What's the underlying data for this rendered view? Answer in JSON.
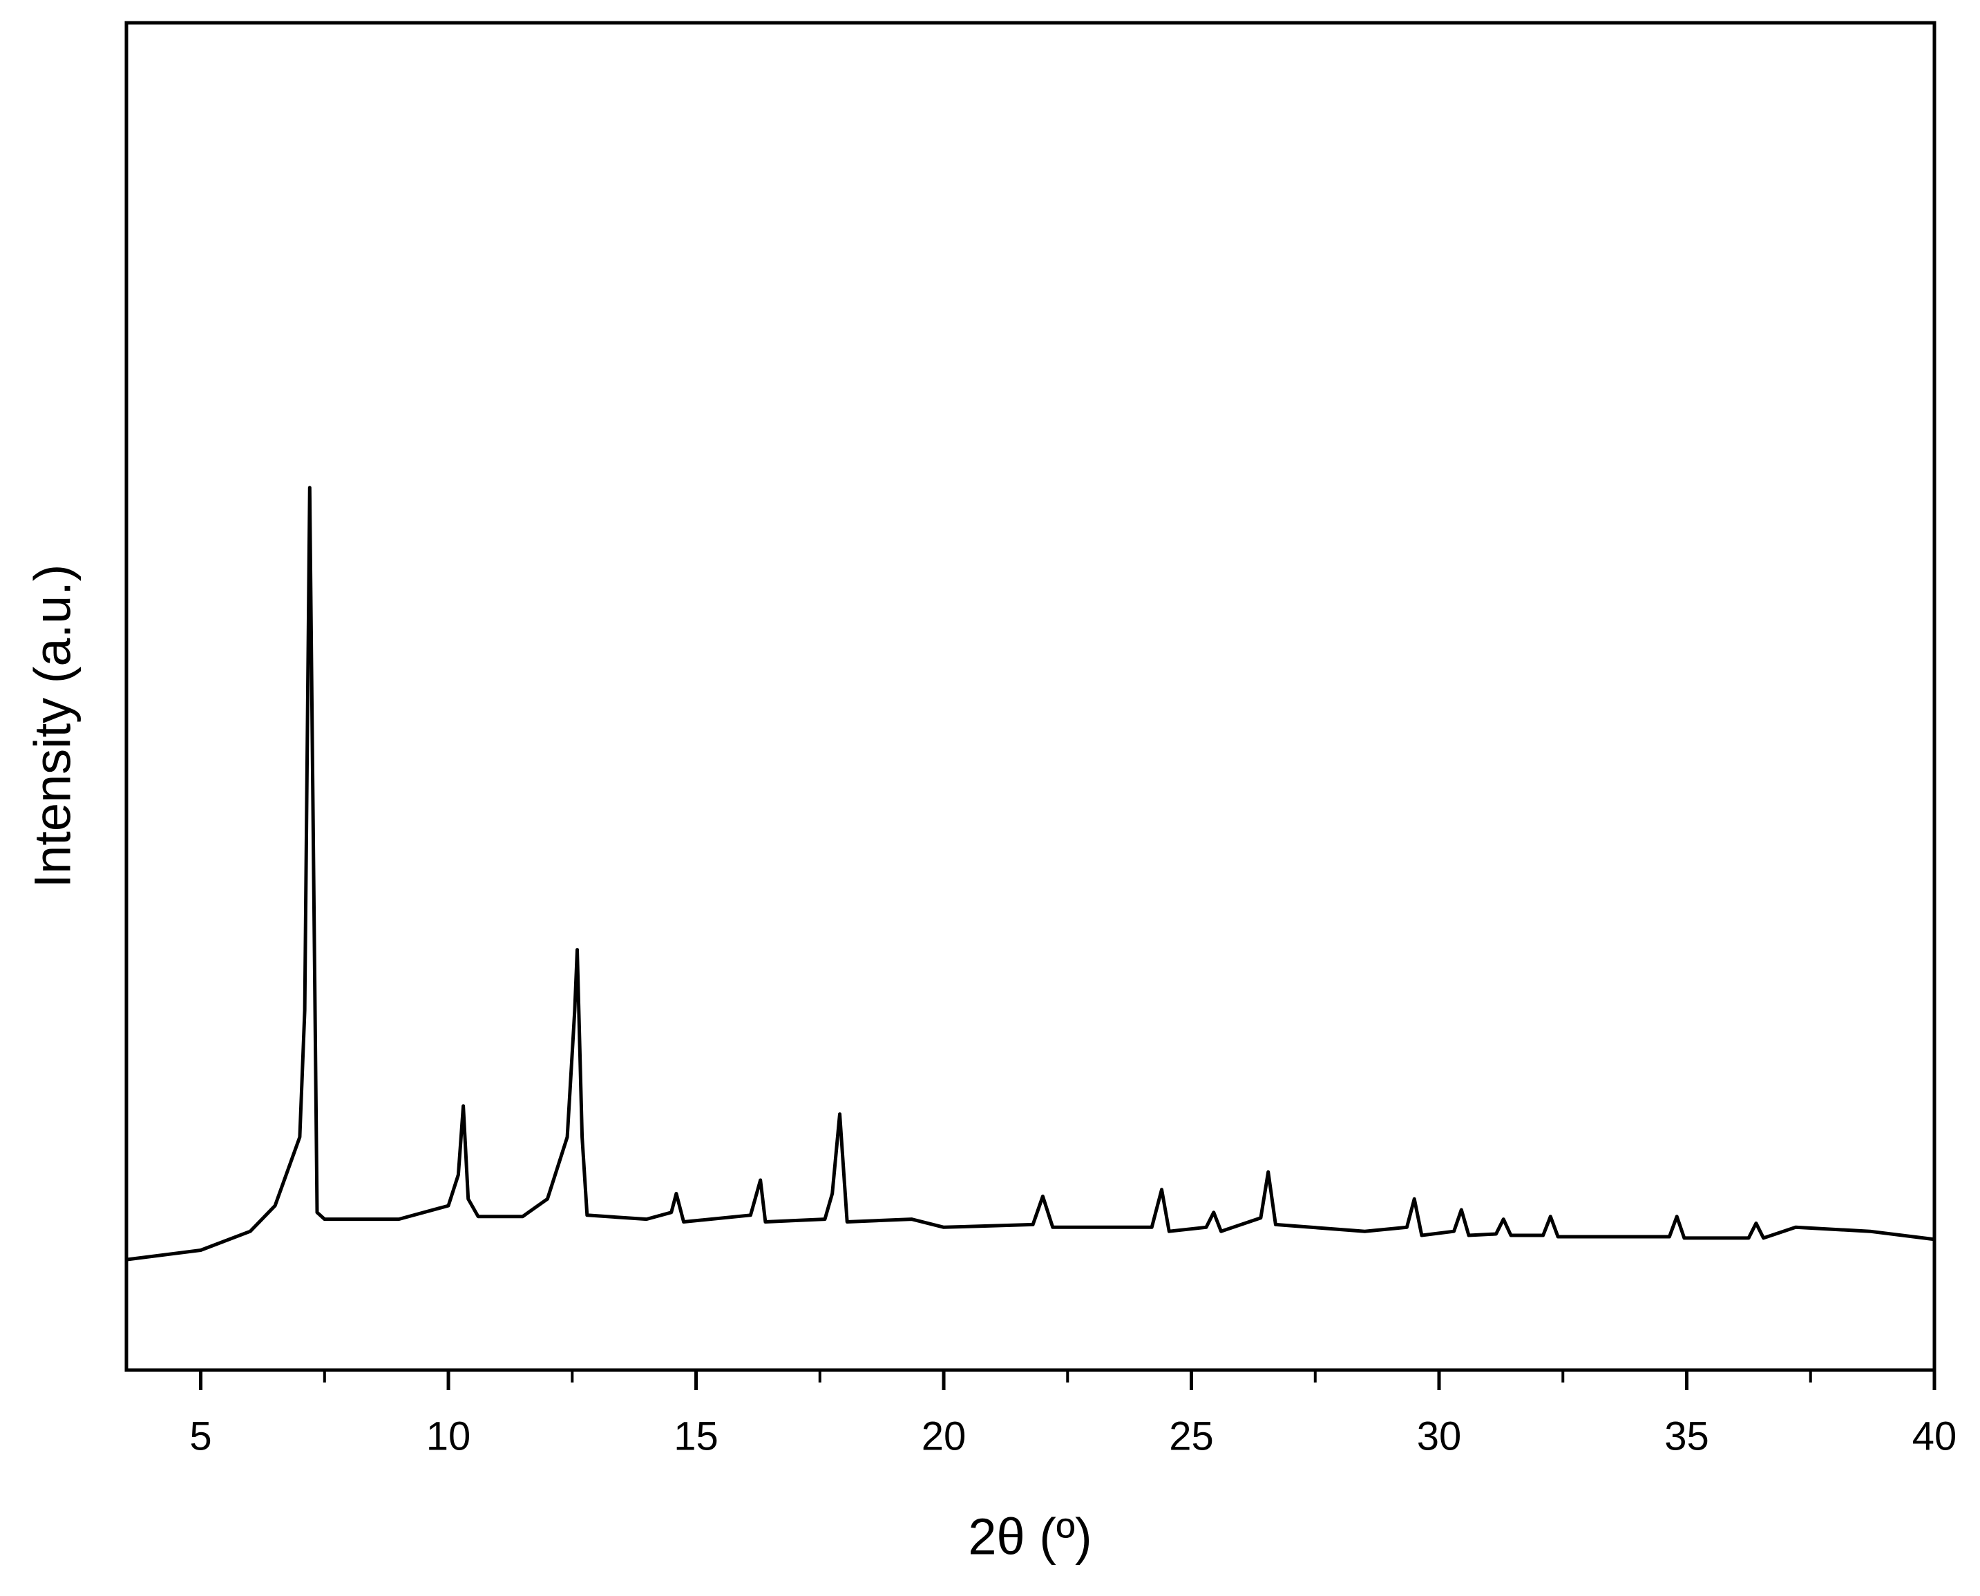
{
  "chart_data": {
    "type": "line",
    "xlabel": "2θ (º)",
    "ylabel": "Intensity (a.u.)",
    "xlim": [
      3.5,
      40
    ],
    "ylim": [
      0,
      100
    ],
    "xticks": [
      5,
      10,
      15,
      20,
      25,
      30,
      35,
      40
    ],
    "xminorticks": [
      7.5,
      12.5,
      17.5,
      22.5,
      27.5,
      32.5,
      37.5
    ],
    "series": [
      {
        "color": "#000000",
        "x": [
          3.5,
          5,
          6,
          6.5,
          7,
          7.1,
          7.2,
          7.35,
          7.5,
          9,
          10,
          10.2,
          10.3,
          10.4,
          10.6,
          11.5,
          12,
          12.4,
          12.55,
          12.6,
          12.7,
          12.8,
          14,
          14.5,
          14.6,
          14.75,
          16.1,
          16.3,
          16.4,
          17.6,
          17.75,
          17.9,
          18.05,
          19.35,
          20,
          21.8,
          22.0,
          22.2,
          24.2,
          24.4,
          24.55,
          25.3,
          25.45,
          25.6,
          26.4,
          26.55,
          26.7,
          28.5,
          29.35,
          29.5,
          29.65,
          30.3,
          30.45,
          30.6,
          31.15,
          31.3,
          31.45,
          32.1,
          32.25,
          32.4,
          34.65,
          34.8,
          34.95,
          36.25,
          36.4,
          36.55,
          37.2,
          38.7,
          40
        ],
        "values": [
          8.2,
          8.9,
          10.3,
          12.2,
          17.3,
          26.7,
          65.5,
          11.7,
          11.2,
          11.2,
          12.2,
          14.5,
          19.6,
          12.7,
          11.4,
          11.4,
          12.7,
          17.3,
          26.7,
          31.2,
          17.3,
          11.5,
          11.2,
          11.7,
          13.1,
          11.0,
          11.5,
          14.1,
          11.0,
          11.2,
          13.1,
          19.0,
          11.0,
          11.2,
          10.6,
          10.8,
          12.9,
          10.6,
          10.6,
          13.4,
          10.3,
          10.6,
          11.7,
          10.3,
          11.3,
          14.7,
          10.8,
          10.3,
          10.6,
          12.7,
          10.0,
          10.3,
          11.9,
          10.0,
          10.1,
          11.2,
          10.0,
          10.0,
          11.4,
          9.9,
          9.9,
          11.4,
          9.8,
          9.8,
          10.9,
          9.8,
          10.6,
          10.3,
          9.7
        ]
      }
    ]
  }
}
